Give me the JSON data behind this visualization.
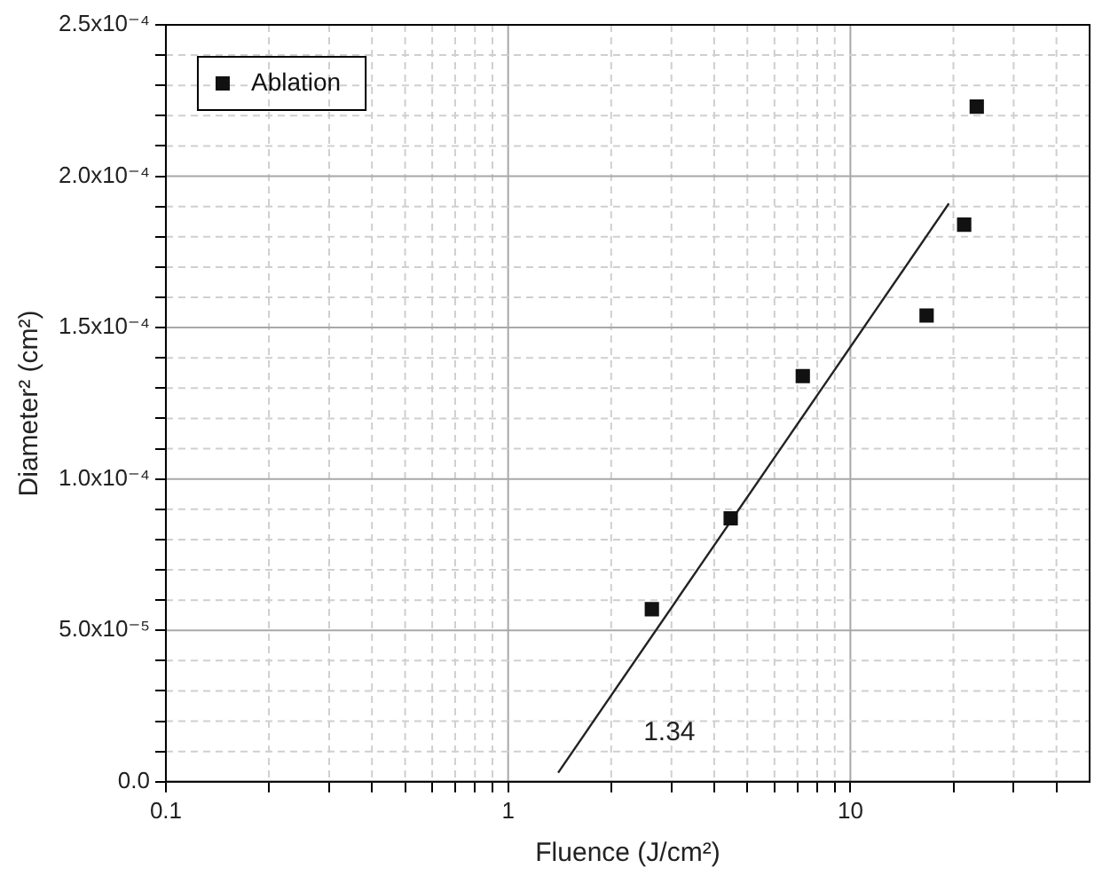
{
  "chart_data": {
    "type": "scatter",
    "xlabel": "Fluence (J/cm²)",
    "ylabel": "Diameter² (cm²)",
    "annotations": [
      "1.34"
    ],
    "log": "x",
    "grid": true,
    "legend": "top left",
    "marker": "square",
    "xlim": [
      0.1,
      50
    ],
    "xticks": [
      {
        "value": 0.1,
        "label": "0.1"
      },
      {
        "value": 0.2,
        "label": null
      },
      {
        "value": 0.3,
        "label": null
      },
      {
        "value": 0.4,
        "label": null
      },
      {
        "value": 0.5,
        "label": null
      },
      {
        "value": 0.6,
        "label": null
      },
      {
        "value": 0.7,
        "label": null
      },
      {
        "value": 0.8,
        "label": null
      },
      {
        "value": 0.9,
        "label": null
      },
      1,
      {
        "value": 2,
        "label": null
      },
      {
        "value": 3,
        "label": null
      },
      {
        "value": 4,
        "label": null
      },
      {
        "value": 5,
        "label": null
      },
      {
        "value": 6,
        "label": null
      },
      {
        "value": 7,
        "label": null
      },
      {
        "value": 8,
        "label": null
      },
      {
        "value": 9,
        "label": null
      },
      10,
      {
        "value": 20,
        "label": null
      },
      {
        "value": 30,
        "label": null
      },
      {
        "value": 40,
        "label": null
      }
    ],
    "ylim": [
      0,
      0.00025
    ],
    "yticks": [
      {
        "value": 0,
        "label": "0.0"
      },
      {
        "value": 1e-05,
        "label": null
      },
      {
        "value": 2e-05,
        "label": null
      },
      {
        "value": 3e-05,
        "label": null
      },
      {
        "value": 4e-05,
        "label": null
      },
      {
        "value": 5e-05,
        "label": "5.0x10⁻⁵"
      },
      {
        "value": 6e-05,
        "label": null
      },
      {
        "value": 7e-05,
        "label": null
      },
      {
        "value": 8e-05,
        "label": null
      },
      {
        "value": 9e-05,
        "label": null
      },
      {
        "value": 0.0001,
        "label": "1.0x10⁻⁴"
      },
      {
        "value": 0.00011,
        "label": null
      },
      {
        "value": 0.00012,
        "label": null
      },
      {
        "value": 0.00013,
        "label": null
      },
      {
        "value": 0.00014,
        "label": null
      },
      {
        "value": 0.00015,
        "label": "1.5x10⁻⁴"
      },
      {
        "value": 0.00016,
        "label": null
      },
      {
        "value": 0.00017,
        "label": null
      },
      {
        "value": 0.00018,
        "label": null
      },
      {
        "value": 0.00019,
        "label": null
      },
      {
        "value": 0.0002,
        "label": "2.0x10⁻⁴"
      },
      {
        "value": 0.00021,
        "label": null
      },
      {
        "value": 0.00022,
        "label": null
      },
      {
        "value": 0.00023,
        "label": null
      },
      {
        "value": 0.00024,
        "label": null
      },
      {
        "value": 0.00025,
        "label": "2.5x10⁻⁴"
      }
    ],
    "series": [
      {
        "name": "Ablation",
        "color": "#111111",
        "x": [
          2.63,
          4.47,
          7.26,
          16.7,
          21.5,
          23.4
        ],
        "values": [
          5.7e-05,
          8.7e-05,
          0.000134,
          0.000154,
          0.000184,
          0.000223
        ]
      },
      {
        "type": "line",
        "marker": "none",
        "color": "#222222",
        "x": [
          1.4,
          19.4
        ],
        "values": [
          3e-06,
          0.000191
        ]
      }
    ]
  }
}
